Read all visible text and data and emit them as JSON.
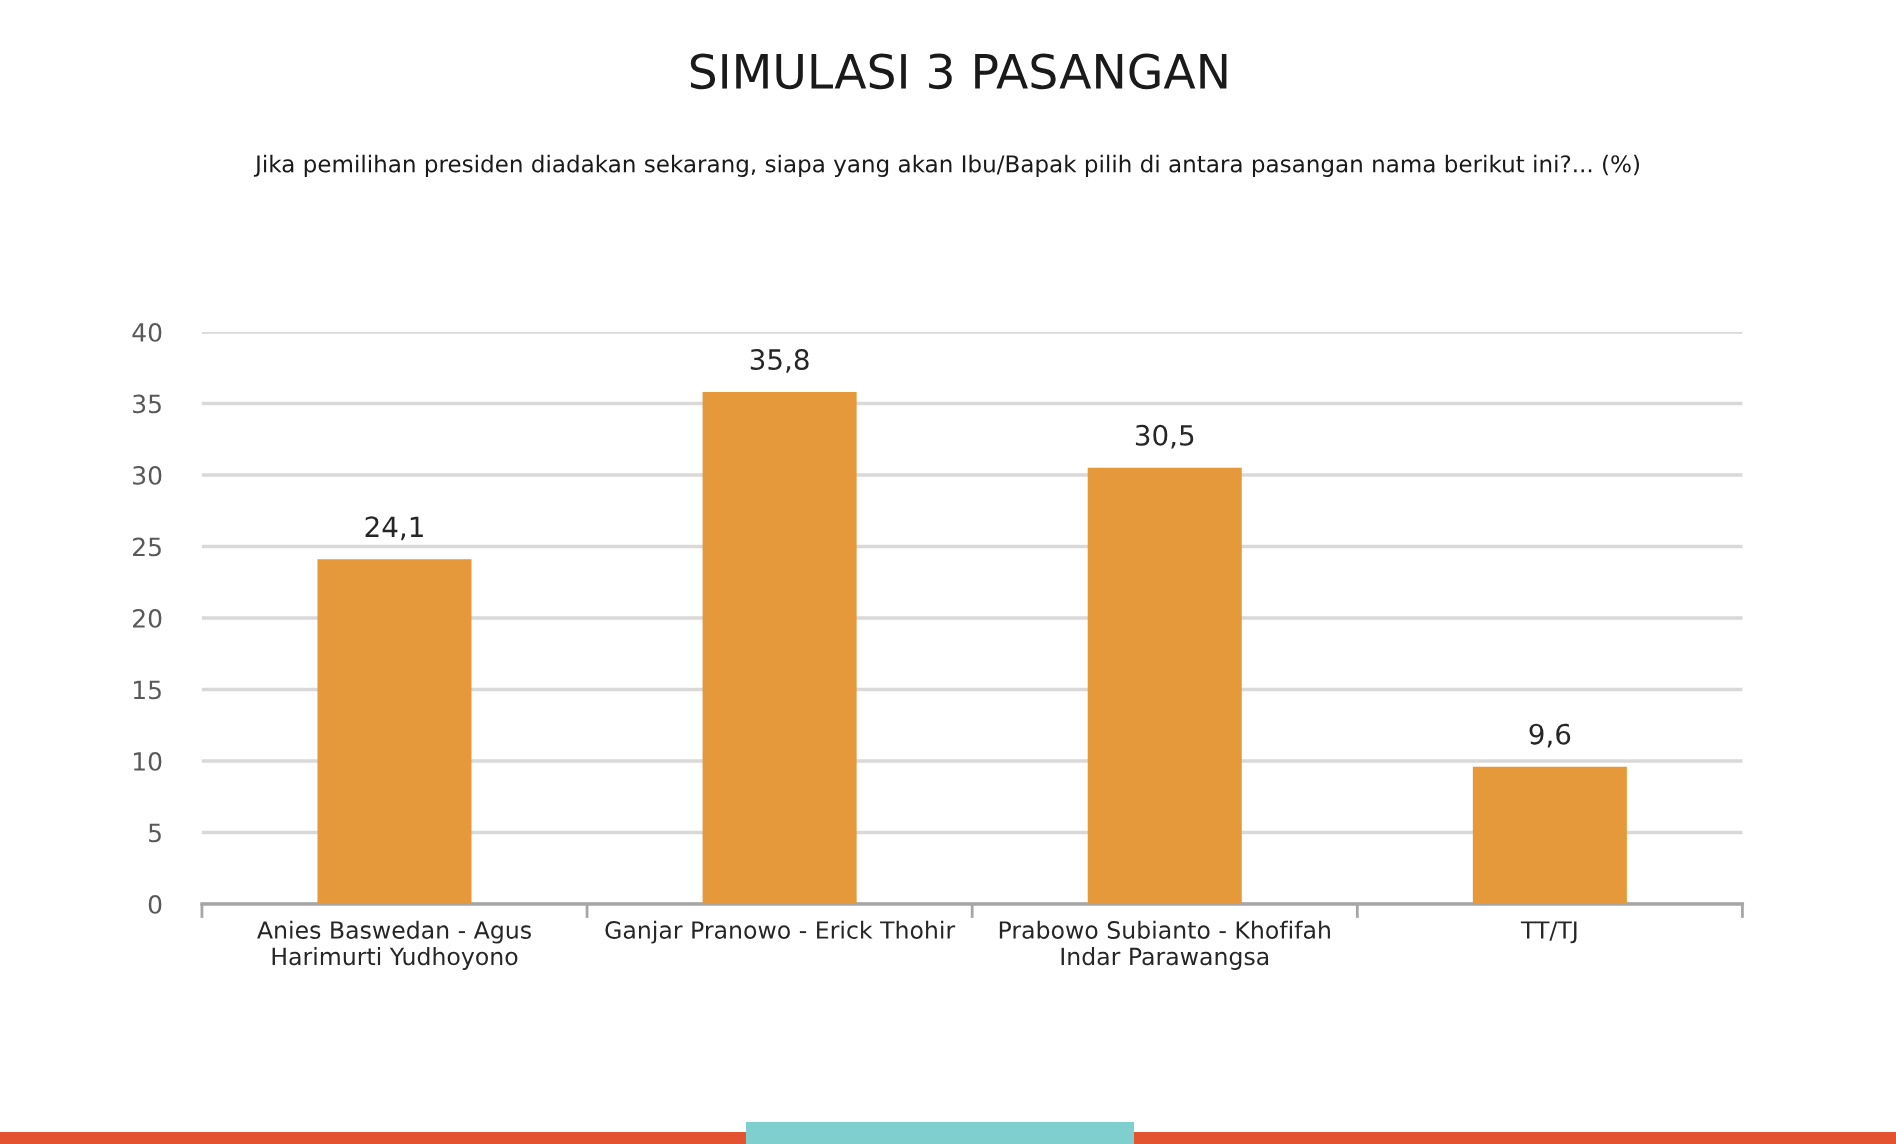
{
  "chart_data": {
    "type": "bar",
    "title": "SIMULASI 3 PASANGAN",
    "subtitle": "Jika pemilihan presiden diadakan sekarang, siapa yang akan Ibu/Bapak pilih di antara pasangan nama berikut ini?... (%)",
    "categories": [
      "Anies Baswedan - Agus\nHarimurti Yudhoyono",
      "Ganjar Pranowo - Erick Thohir",
      "Prabowo Subianto - Khofifah\nIndar Parawangsa",
      "TT/TJ"
    ],
    "values": [
      24.1,
      35.8,
      30.5,
      9.6
    ],
    "value_labels": [
      "24,1",
      "35,8",
      "30,5",
      "9,6"
    ],
    "color": "#e6993a",
    "ylim": [
      0,
      40
    ],
    "yticks": [
      0,
      5,
      10,
      15,
      20,
      25,
      30,
      35,
      40
    ],
    "grid": "y"
  }
}
